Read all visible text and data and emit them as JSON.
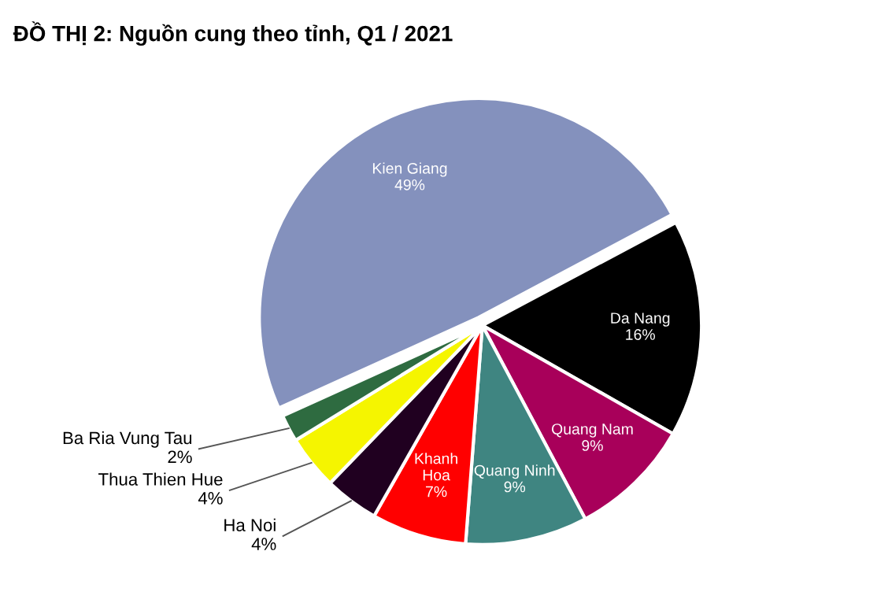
{
  "chart_data": {
    "type": "pie",
    "title": "ĐỒ THỊ 2: Nguồn cung theo tỉnh, Q1 / 2021",
    "categories": [
      "Da Nang",
      "Quang Nam",
      "Quang Ninh",
      "Khanh Hoa",
      "Ha Noi",
      "Thua Thien Hue",
      "Ba Ria Vung Tau",
      "Kien Giang"
    ],
    "values": [
      16,
      9,
      9,
      7,
      4,
      4,
      2,
      49
    ],
    "value_labels": [
      "16%",
      "9%",
      "9%",
      "7%",
      "4%",
      "4%",
      "2%",
      "49%"
    ],
    "colors": [
      "#000000",
      "#a8005a",
      "#3f8581",
      "#ff0000",
      "#200020",
      "#f5f500",
      "#2e6b40",
      "#8491bd"
    ],
    "legend": false
  }
}
